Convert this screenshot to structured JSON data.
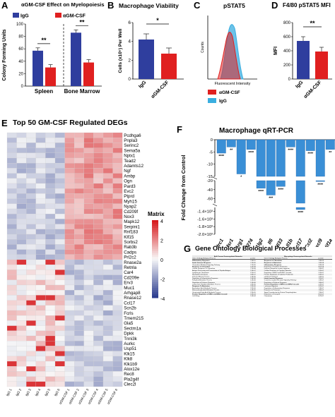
{
  "panels": {
    "A": {
      "letter": "A",
      "title": "αGM-CSF Effect on Myelopoiesis",
      "chart_data": {
        "type": "bar",
        "categories": [
          "Spleen",
          "Bone Marrow"
        ],
        "series": [
          {
            "name": "IgG",
            "values": [
              57,
              86
            ],
            "color": "#2f3e9e"
          },
          {
            "name": "αGM-CSF",
            "values": [
              30,
              38
            ],
            "color": "#e02020"
          }
        ],
        "ylabel": "Colony Forming Units",
        "ylim": [
          0,
          100
        ],
        "yticks": [
          "0",
          "20",
          "40",
          "60",
          "80",
          "100"
        ],
        "sig": [
          "**",
          "**"
        ]
      }
    },
    "B": {
      "letter": "B",
      "title": "Macrophage Viability",
      "chart_data": {
        "type": "bar",
        "categories": [
          "IgG",
          "αGM-CSF"
        ],
        "values": [
          4.2,
          2.7
        ],
        "colors": [
          "#2f3e9e",
          "#e02020"
        ],
        "ylabel": "Cells (x10⁵) Per Well",
        "ylim": [
          0,
          6
        ],
        "yticks": [
          "0",
          "2",
          "4",
          "6"
        ],
        "sig": "*"
      }
    },
    "C": {
      "letter": "C",
      "title": "pSTAT5",
      "xlabel": "Fluorescent Intensity",
      "ylabel": "Counts",
      "legend": [
        {
          "name": "αGM-CSF",
          "color": "#e02020"
        },
        {
          "name": "IgG",
          "color": "#3aaee0"
        }
      ]
    },
    "D": {
      "letter": "D",
      "title": "F4/80 pSTAT5 MFI",
      "chart_data": {
        "type": "bar",
        "categories": [
          "IgG",
          "αGM-CSF"
        ],
        "values": [
          540,
          390
        ],
        "colors": [
          "#2f3e9e",
          "#e02020"
        ],
        "ylabel": "MFI",
        "ylim": [
          0,
          800
        ],
        "yticks": [
          "0",
          "200",
          "400",
          "600",
          "800"
        ],
        "sig": "**"
      }
    },
    "E": {
      "letter": "E",
      "title": "Top 50 GM-CSF Regulated DEGs",
      "matrix_label": "Matrix",
      "scale_ticks": [
        "4",
        "2",
        "0",
        "-2",
        "-4"
      ],
      "columns": [
        "IgG 1",
        "IgG 2",
        "IgG 3",
        "IgG 4",
        "IgG 5",
        "IgG 6",
        "αGM-CSF 1",
        "αGM-CSF 2",
        "αGM-CSF 3",
        "αGM-CSF 4",
        "αGM-CSF 5",
        "αGM-CSF 6"
      ],
      "genes": [
        "Pcdhga6",
        "Pnpla3",
        "Serinc2",
        "Sema5a",
        "Nptx1",
        "Tead2",
        "Adamts12",
        "Ngf",
        "Ambp",
        "Ogn",
        "Pard3",
        "Evc2",
        "Ptprd",
        "Myh15",
        "Nyap2",
        "Cd209f",
        "Nox3",
        "Mapk12",
        "Serpini1",
        "Rnf183",
        "Klf15",
        "Sorbs2",
        "Rab3b",
        "Cadps",
        "Prl2c2",
        "Rnase2a",
        "Retnla",
        "Car4",
        "Cd209e",
        "Erv3",
        "Muc1",
        "Arhgap8",
        "Rnase12",
        "Ccl17",
        "Scn2b",
        "Fcrls",
        "Tmem215",
        "Gla5",
        "Sectm1a",
        "Dpkk",
        "Tnni3k",
        "Aurkc",
        "Usp51",
        "Klk15",
        "Klk8",
        "Klk1b9",
        "Alox12e",
        "Rec8",
        "Pla2g4f",
        "Clec2l"
      ]
    },
    "F": {
      "letter": "F",
      "title": "Macrophage qRT-PCR",
      "ylabel": "Fold Change from Control",
      "chart_data": {
        "type": "bar",
        "categories": [
          "Mrc1",
          "Msr1",
          "Arg1",
          "Cd274",
          "Pdcd1lg2",
          "Il6",
          "Il33",
          "Il1b",
          "Ccl17",
          "Ccl2",
          "Cxcl9",
          "Hif1a"
        ],
        "values": [
          -5.5,
          -3,
          -14,
          -4,
          -37,
          -52,
          -33,
          -3,
          -1300,
          -4.5,
          -22,
          -4
        ],
        "sig": [
          "****",
          "**",
          "*",
          "****",
          "****",
          "***",
          "****",
          "****",
          "****",
          "****",
          "****",
          "**"
        ],
        "yticks_top": [
          "0",
          "-5",
          "-10",
          "-15"
        ],
        "yticks_mid": [
          "-20",
          "-40",
          "-60"
        ],
        "yticks_low": [
          "-1.4×10³",
          "-1.6×10³",
          "-1.8×10³",
          "-2.0×10³"
        ]
      }
    },
    "G": {
      "letter": "G",
      "title": "Gene Ontology Biological Processes",
      "header_left": "Bulk Tumour Downregulated Networks",
      "header_right": "Macrophage Downregulated Networks",
      "col_labels": [
        "Gene Ontology Biological Process",
        "p-value",
        "Gene Ontology Biological Process",
        "p-value"
      ],
      "rows": [
        [
          "Inflammatory Response",
          "7.3E-10",
          "Response to Chemokine",
          "1.3E-09",
          true,
          true
        ],
        [
          "Innate Immune Response",
          "7.1E-09",
          "Response to Bacterium",
          "1.0E-08",
          true,
          true
        ],
        [
          "Chemokine-Mediated Signaling Pathway",
          "7.1E-09",
          "Inflammatory Response",
          "3.3E-08",
          false,
          true
        ],
        [
          "Response to Chemokine",
          "3.1E-08",
          "Regulation of Cytokine Production",
          "8.1E-08",
          true,
          false
        ],
        [
          "Cellular Response To Chemokine",
          "7.1E-08",
          "Defense Response to other organism",
          "1.9E-07",
          false,
          false
        ],
        [
          "Antigen Processing and Presentation of Peptide Antigen",
          "1.3E-07",
          "Cellular Response to Cytokine Stimulus",
          "2.2E-07",
          false,
          false
        ],
        [
          "Lymphocyte Chemotaxis",
          "3.7E-07",
          "Regulation of ERK1 and ERK2 Cascade",
          "2.2E-07",
          false,
          false
        ],
        [
          "Neutrophil Chemotaxis",
          "3.6E-07",
          "Positive Regulation of Cytokine Production",
          "5.6E-07",
          false,
          false
        ],
        [
          "Immune Effector Process",
          "1.0E-06",
          "Cytokine Production",
          "1.2E-07",
          false,
          false
        ],
        [
          "Regulation of Inflammatory Response",
          "1.0E-06",
          "Innate Immune Response",
          "1.2E-07",
          false,
          true
        ],
        [
          "Fatty Acid Metabolic Process",
          "1.0E-06",
          "G protein-Coupled Receptor Signaling Pathway",
          "1.3E-07",
          false,
          false
        ],
        [
          "Regulation of Defense Response",
          "1.5E-06",
          "Regulation of Defense Response",
          "1.6E-07",
          false,
          false
        ],
        [
          "Long-Chain Fatty Acid Metabolic Process",
          "2.0E-06",
          "Positive Regulation of ERK1 and ERK2 Cascade",
          "2.2E-07",
          false,
          true
        ],
        [
          "Response To Bacterium",
          "2.3E-06",
          "Leukocyte Migration",
          "3.2E-07",
          true,
          false
        ],
        [
          "Arachidonic Acid Metabolic Process",
          "2.5E-06",
          "Regulation of Inflammatory Response",
          "7.4E-07",
          false,
          false
        ],
        [
          "Monocarboxylic Acid Metabolic Process",
          "1.0E-05",
          "Response to Protozoan",
          "7.6E-07",
          false,
          false
        ],
        [
          "Unsaturated Fatty Acid Metabolic Process",
          "2.2E-05",
          "Signal Transduction by Protein Phosphorylation",
          "7.9E-07",
          false,
          false
        ],
        [
          "Positive Regulation of ERK1 and ERK2 Cascade",
          "3.2E-04",
          "Regulation of Transport",
          "8.1E-07",
          true,
          false
        ],
        [
          "Cell Killing",
          "1.4E-04",
          "Chemotaxis",
          "8.7E-07",
          false,
          false
        ]
      ]
    }
  },
  "colors": {
    "igg": "#2f3e9e",
    "agm": "#e02020",
    "fig_blue": "#3aaee0",
    "heat_hi": "#d7191c",
    "heat_lo": "#2c3d8f"
  }
}
